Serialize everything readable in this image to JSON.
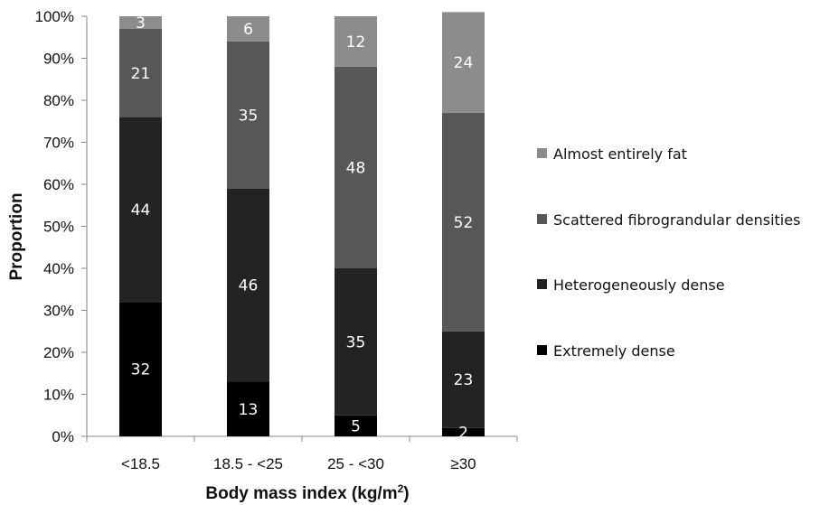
{
  "chart_data": {
    "type": "bar",
    "stacked": true,
    "categories": [
      "<18.5",
      "18.5 - <25",
      "25 - <30",
      "≥30"
    ],
    "series": [
      {
        "name": "Extremely dense",
        "values": [
          32,
          13,
          5,
          2
        ],
        "color": "#000000"
      },
      {
        "name": "Heterogeneously dense",
        "values": [
          44,
          46,
          35,
          23
        ],
        "color": "#232323"
      },
      {
        "name": "Scattered fibrograndular densities",
        "values": [
          21,
          35,
          48,
          52
        ],
        "color": "#575757"
      },
      {
        "name": "Almost entirely fat",
        "values": [
          3,
          6,
          12,
          24
        ],
        "color": "#8c8c8c"
      }
    ],
    "xlabel": "Body mass index (kg/m2)",
    "xlabel_main": "Body mass index (kg/m",
    "xlabel_sup": "2",
    "xlabel_close": ")",
    "ylabel": "Proportion",
    "ylim": [
      0,
      100
    ],
    "yticks": [
      "0%",
      "10%",
      "20%",
      "30%",
      "40%",
      "50%",
      "60%",
      "70%",
      "80%",
      "90%",
      "100%"
    ],
    "grid": false,
    "legend_position": "right",
    "legend_order": [
      "Almost entirely fat",
      "Scattered fibrograndular densities",
      "Heterogeneously dense",
      "Extremely dense"
    ]
  }
}
